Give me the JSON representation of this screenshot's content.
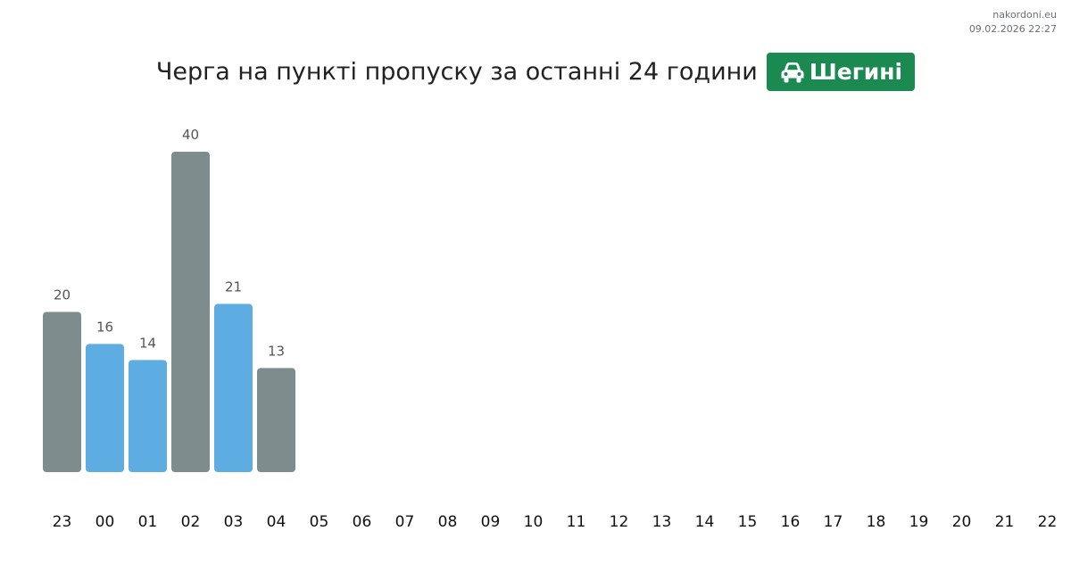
{
  "meta": {
    "site": "nakordoni.eu",
    "timestamp": "09.02.2026 22:27"
  },
  "header": {
    "title": "Черга на пункті пропуску за останні 24 години",
    "badge": {
      "icon": "car-icon",
      "label": "Шегині",
      "color": "#1a8a50"
    }
  },
  "colors": {
    "gray": "#7f8c8d",
    "blue": "#5dade2",
    "value_label": "#555555",
    "tick_label": "#111111"
  },
  "chart_data": {
    "type": "bar",
    "title": "",
    "xlabel": "",
    "ylabel": "",
    "ylim": [
      0,
      40
    ],
    "categories": [
      "23",
      "00",
      "01",
      "02",
      "03",
      "04",
      "05",
      "06",
      "07",
      "08",
      "09",
      "10",
      "11",
      "12",
      "13",
      "14",
      "15",
      "16",
      "17",
      "18",
      "19",
      "20",
      "21",
      "22"
    ],
    "values": [
      20,
      16,
      14,
      40,
      21,
      13,
      null,
      null,
      null,
      null,
      null,
      null,
      null,
      null,
      null,
      null,
      null,
      null,
      null,
      null,
      null,
      null,
      null,
      null
    ],
    "bar_colors": [
      "gray",
      "blue",
      "blue",
      "gray",
      "blue",
      "gray",
      null,
      null,
      null,
      null,
      null,
      null,
      null,
      null,
      null,
      null,
      null,
      null,
      null,
      null,
      null,
      null,
      null,
      null
    ],
    "value_labels": true,
    "grid": false,
    "legend": "none"
  }
}
